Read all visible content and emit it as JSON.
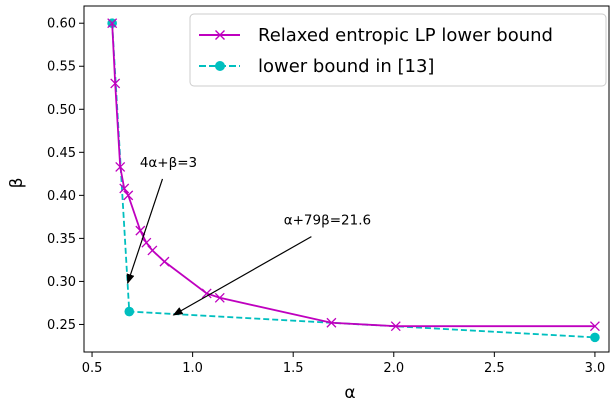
{
  "chart_data": {
    "type": "line",
    "xlabel": "α",
    "ylabel": "β",
    "xlim": [
      0.46,
      3.07
    ],
    "ylim": [
      0.218,
      0.62
    ],
    "xticks": [
      0.5,
      1.0,
      1.5,
      2.0,
      2.5,
      3.0
    ],
    "xtick_labels": [
      "0.5",
      "1.0",
      "1.5",
      "2.0",
      "2.5",
      "3.0"
    ],
    "yticks": [
      0.25,
      0.3,
      0.35,
      0.4,
      0.45,
      0.5,
      0.55,
      0.6
    ],
    "ytick_labels": [
      "0.25",
      "0.30",
      "0.35",
      "0.40",
      "0.45",
      "0.50",
      "0.55",
      "0.60"
    ],
    "grid": false,
    "legend_position": "top-right",
    "series": [
      {
        "name": "Relaxed entropic LP lower bound",
        "color": "#bf00bf",
        "linestyle": "solid",
        "marker": "x",
        "x": [
          0.6,
          0.615,
          0.64,
          0.66,
          0.68,
          0.74,
          0.77,
          0.8,
          0.86,
          1.07,
          1.135,
          1.69,
          2.01,
          3.0
        ],
        "y": [
          0.6,
          0.53,
          0.433,
          0.408,
          0.4,
          0.359,
          0.345,
          0.336,
          0.323,
          0.286,
          0.281,
          0.252,
          0.248,
          0.248
        ]
      },
      {
        "name": "lower bound in [13]",
        "color": "#00bfbf",
        "linestyle": "dashed",
        "marker": "o",
        "x": [
          0.6,
          0.685,
          3.0
        ],
        "y": [
          0.6,
          0.265,
          0.235
        ]
      }
    ],
    "annotations": [
      {
        "text": "4α+β=3",
        "text_at": [
          0.88,
          0.433
        ],
        "arrow_to": [
          0.677,
          0.298
        ]
      },
      {
        "text": "α+79β=21.6",
        "text_at": [
          1.67,
          0.366
        ],
        "arrow_to": [
          0.905,
          0.261
        ]
      }
    ]
  }
}
